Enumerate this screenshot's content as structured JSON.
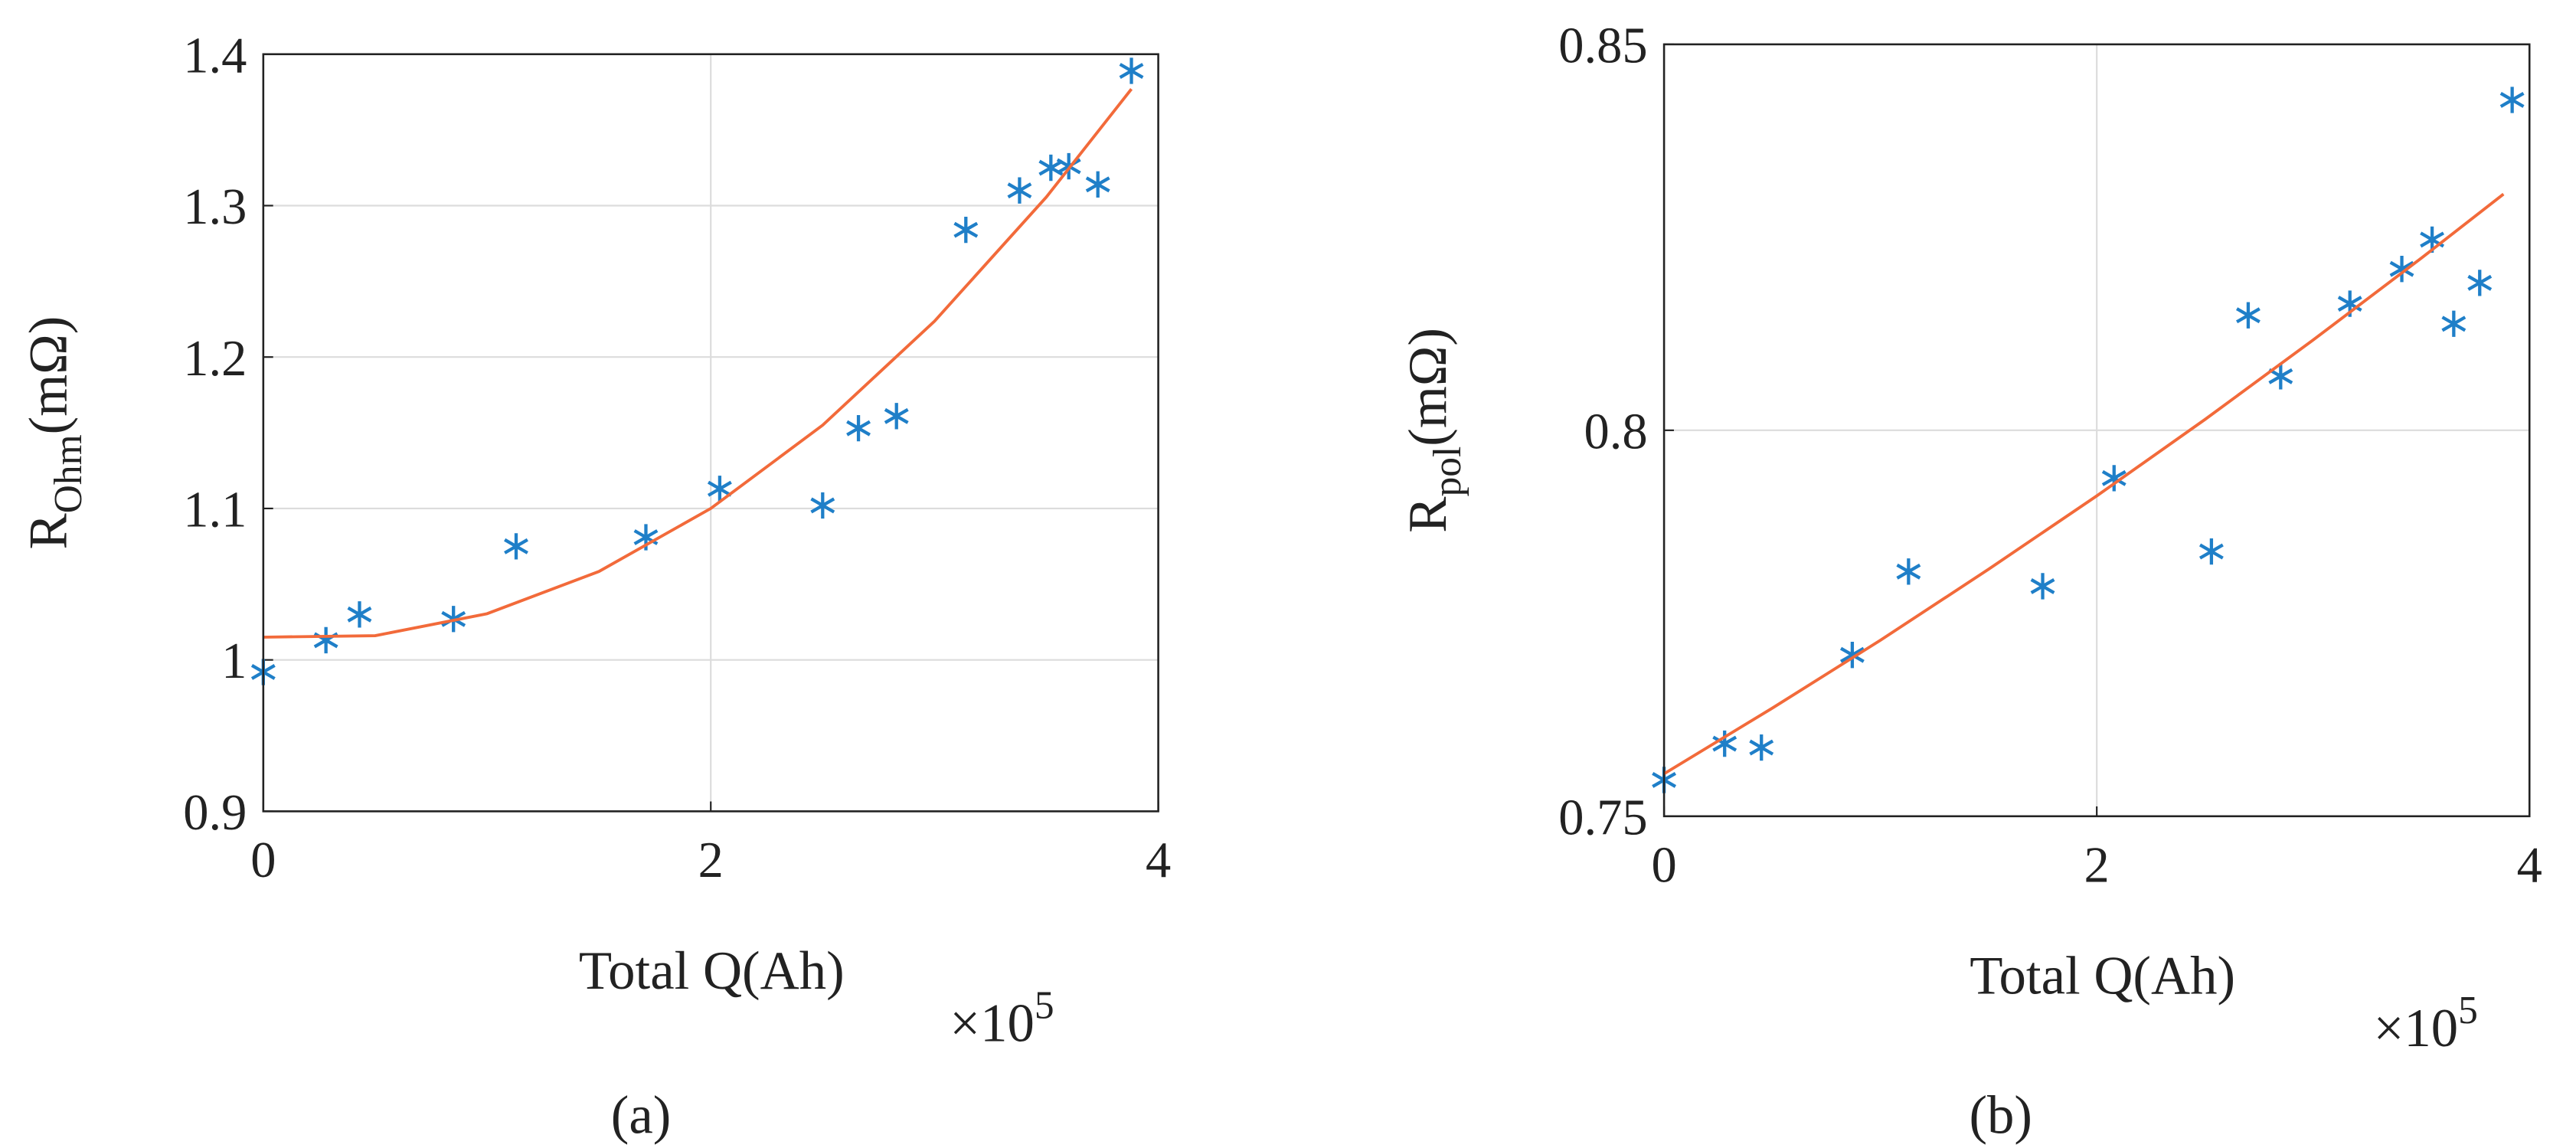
{
  "chart_data": [
    {
      "type": "scatter",
      "panel": "(a)",
      "ylabel_main": "R",
      "ylabel_sub": "Ohm",
      "ylabel_unit": "(mΩ)",
      "xlabel": "Total Q(Ah)",
      "x_multiplier": "×10",
      "x_multiplier_exp": "5",
      "xlim": [
        0,
        4
      ],
      "xticks": [
        0,
        2,
        4
      ],
      "ylim": [
        0.9,
        1.4
      ],
      "yticks": [
        0.9,
        1,
        1.1,
        1.2,
        1.3,
        1.4
      ],
      "grid": true,
      "series": [
        {
          "color": "#1f7fc8",
          "marker": "asterisk",
          "x": [
            0,
            0.28,
            0.43,
            0.85,
            1.13,
            1.71,
            2.04,
            2.5,
            2.66,
            2.83,
            3.14,
            3.38,
            3.52,
            3.6,
            3.73,
            3.88
          ],
          "values": [
            0.992,
            1.013,
            1.03,
            1.027,
            1.075,
            1.081,
            1.113,
            1.102,
            1.153,
            1.161,
            1.284,
            1.31,
            1.325,
            1.326,
            1.314,
            1.389
          ]
        },
        {
          "color": "#f26a3a",
          "marker": "line",
          "x": [
            0,
            0.5,
            1,
            1.5,
            2,
            2.5,
            3,
            3.5,
            3.88
          ],
          "values": [
            1.015,
            1.016,
            1.0305,
            1.0584,
            1.1,
            1.155,
            1.2237,
            1.3057,
            1.377
          ]
        }
      ]
    },
    {
      "type": "scatter",
      "panel": "(b)",
      "ylabel_main": "R",
      "ylabel_sub": "pol",
      "ylabel_unit": "(mΩ)",
      "xlabel": "Total Q(Ah)",
      "x_multiplier": "×10",
      "x_multiplier_exp": "5",
      "xlim": [
        0,
        4
      ],
      "xticks": [
        0,
        2,
        4
      ],
      "ylim": [
        0.75,
        0.85
      ],
      "yticks": [
        0.75,
        0.8,
        0.85
      ],
      "grid": true,
      "series": [
        {
          "color": "#1f7fc8",
          "marker": "asterisk",
          "x": [
            0,
            0.28,
            0.45,
            0.87,
            1.13,
            1.75,
            2.08,
            2.53,
            2.7,
            2.85,
            3.17,
            3.41,
            3.55,
            3.65,
            3.77,
            3.92
          ],
          "values": [
            0.7547,
            0.7594,
            0.7589,
            0.7709,
            0.7817,
            0.7798,
            0.7938,
            0.7843,
            0.8149,
            0.807,
            0.8164,
            0.8209,
            0.8247,
            0.8138,
            0.8191,
            0.8428
          ]
        },
        {
          "color": "#f26a3a",
          "marker": "line",
          "x": [
            0,
            0.5,
            1,
            1.5,
            2,
            2.5,
            3,
            3.5,
            3.88
          ],
          "values": [
            0.7555,
            0.764,
            0.7728,
            0.782,
            0.7915,
            0.8014,
            0.8117,
            0.8223,
            0.8306
          ]
        }
      ]
    }
  ]
}
